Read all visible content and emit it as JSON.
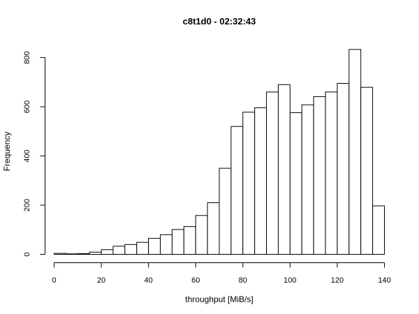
{
  "chart_data": {
    "type": "bar",
    "title": "c8t1d0 - 02:32:43",
    "xlabel": "throughput [MiB/s]",
    "ylabel": "Frequency",
    "bin_width": 5,
    "bin_starts": [
      0,
      5,
      10,
      15,
      20,
      25,
      30,
      35,
      40,
      45,
      50,
      55,
      60,
      65,
      70,
      75,
      80,
      85,
      90,
      95,
      100,
      105,
      110,
      115,
      120,
      125,
      130,
      135
    ],
    "values": [
      4,
      2,
      3,
      9,
      19,
      33,
      40,
      49,
      65,
      80,
      101,
      113,
      158,
      210,
      350,
      520,
      578,
      596,
      660,
      690,
      576,
      608,
      641,
      660,
      695,
      833,
      679,
      197
    ],
    "xlim": [
      0,
      140
    ],
    "ylim": [
      0,
      800
    ],
    "x_ticks": [
      0,
      20,
      40,
      60,
      80,
      100,
      120,
      140
    ],
    "y_ticks": [
      0,
      200,
      400,
      600,
      800
    ],
    "grid": false,
    "bar_fill": "#ffffff",
    "bar_stroke": "#000000"
  }
}
